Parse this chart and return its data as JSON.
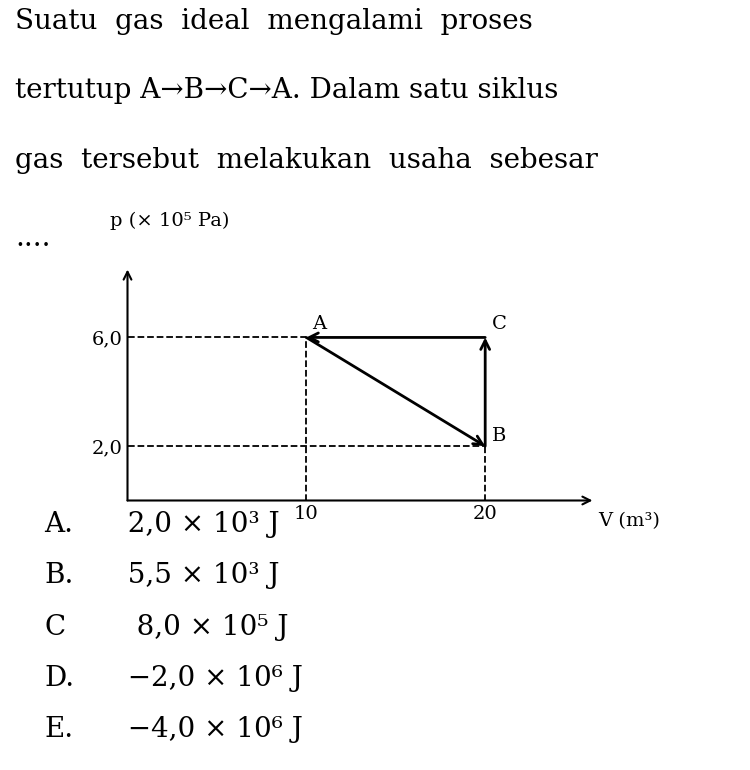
{
  "title_lines": [
    "Suatu  gas  ideal  mengalami  proses",
    "tertutup A→B→C→A. Dalam satu siklus",
    "gas  tersebut  melakukan  usaha  sebesar"
  ],
  "dots": "....",
  "ylabel": "p (× 10⁵ Pa)",
  "xlabel": "V (m³)",
  "ytick_labels": [
    "2,0",
    "6,0"
  ],
  "ytick_vals": [
    2.0,
    6.0
  ],
  "xtick_labels": [
    "10",
    "20"
  ],
  "xtick_vals": [
    10,
    20
  ],
  "xlim": [
    0,
    26
  ],
  "ylim": [
    0,
    8.5
  ],
  "points": {
    "A": [
      10,
      6.0
    ],
    "B": [
      20,
      2.0
    ],
    "C": [
      20,
      6.0
    ]
  },
  "choices": [
    [
      "A.",
      "  2,0 × 10³ J"
    ],
    [
      "B.",
      "  5,5 × 10³ J"
    ],
    [
      "C",
      "   8,0 × 10⁵ J"
    ],
    [
      "D.",
      "  −2,0 × 10⁶ J"
    ],
    [
      "E.",
      "  −4,0 × 10⁶ J"
    ]
  ],
  "bg_color": "#ffffff",
  "line_color": "#000000",
  "title_fontsize": 20,
  "choices_fontsize": 20,
  "graph_label_fontsize": 14,
  "tick_fontsize": 14,
  "axis_label_fontsize": 14
}
